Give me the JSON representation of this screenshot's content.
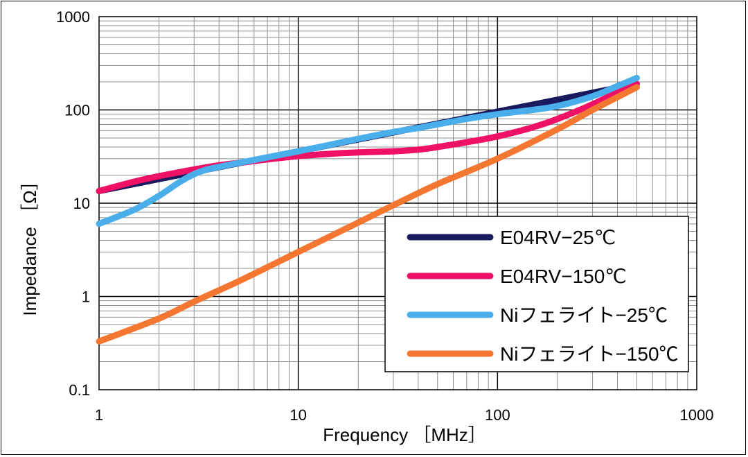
{
  "chart_data": {
    "type": "line",
    "xlabel": "Frequency ［MHz］",
    "ylabel": "Impedance ［Ω］",
    "xscale": "log",
    "yscale": "log",
    "xlim": [
      1,
      1000
    ],
    "ylim": [
      0.1,
      1000
    ],
    "grid": true,
    "legend_position": "bottom-right",
    "x_tick_labels": [
      "1",
      "10",
      "100",
      "1000"
    ],
    "y_tick_labels": [
      "0.1",
      "1",
      "10",
      "100",
      "1000"
    ],
    "series": [
      {
        "name": "E04RV−25℃",
        "color": "#1a1a5e",
        "width": 9,
        "x": [
          1,
          500
        ],
        "y": [
          13.5,
          190
        ],
        "hidden_under": "E04RV−150℃"
      },
      {
        "name": "E04RV−150℃",
        "color": "#ee1166",
        "width": 9,
        "x": [
          1,
          1.5,
          2,
          3,
          4,
          5,
          7,
          10,
          15,
          20,
          30,
          40,
          50,
          70,
          100,
          150,
          200,
          300,
          400,
          500
        ],
        "y": [
          13.5,
          17,
          19.5,
          23,
          25.5,
          27,
          29.5,
          32,
          34,
          35,
          36,
          37.5,
          40,
          45,
          52,
          65,
          80,
          115,
          155,
          190
        ]
      },
      {
        "name": "Niフェライト−25℃",
        "color": "#4aaeea",
        "width": 9,
        "x": [
          1,
          1.5,
          2,
          2.5,
          3,
          3.5,
          4,
          5,
          7,
          10,
          15,
          20,
          30,
          40,
          50,
          70,
          100,
          150,
          200,
          300,
          400,
          500
        ],
        "y": [
          6,
          8.5,
          12,
          16.5,
          20.5,
          23,
          24.5,
          27,
          31,
          36,
          43,
          49,
          58,
          64,
          70,
          80,
          90,
          100,
          110,
          140,
          180,
          220
        ]
      },
      {
        "name": "Niフェライト−150℃",
        "color": "#f47731",
        "width": 9,
        "x": [
          1,
          2,
          3,
          5,
          10,
          20,
          30,
          50,
          100,
          200,
          300,
          500
        ],
        "y": [
          0.33,
          0.58,
          0.88,
          1.45,
          3,
          6.2,
          9.5,
          16,
          30,
          62,
          100,
          175
        ]
      }
    ]
  }
}
